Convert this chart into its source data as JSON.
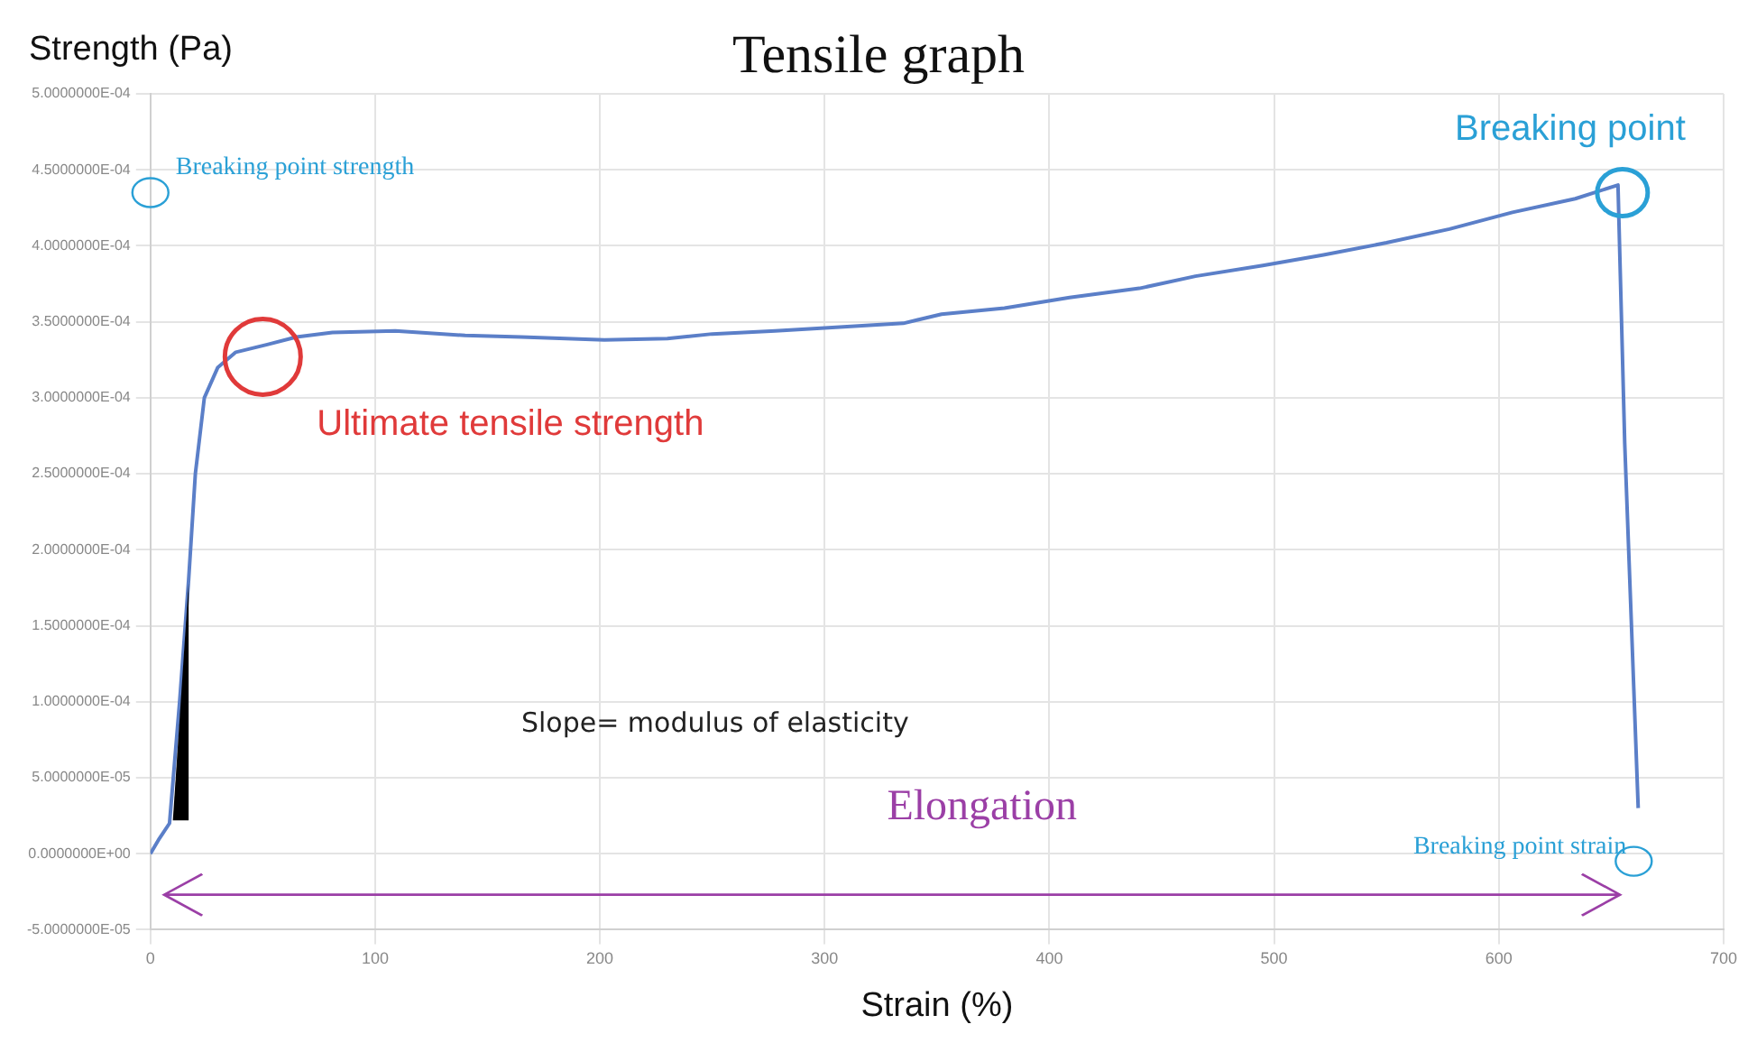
{
  "chart_data": {
    "type": "line",
    "title": "Tensile graph",
    "xlabel": "Strain (%)",
    "ylabel": "Strength (Pa)",
    "x": [
      0,
      4,
      8.5,
      13,
      17,
      20,
      24,
      30,
      38,
      52,
      65,
      81,
      109,
      140,
      165,
      202,
      230,
      250,
      278,
      300,
      335,
      352,
      380,
      409,
      440,
      465,
      495,
      522,
      550,
      578,
      606,
      634,
      653,
      656,
      662
    ],
    "series": [
      {
        "color": "#5b7fc8",
        "values": [
          0,
          1e-05,
          2e-05,
          0.0001,
          0.00018,
          0.00025,
          0.0003,
          0.00032,
          0.00033,
          0.000335,
          0.00034,
          0.000343,
          0.000344,
          0.000341,
          0.00034,
          0.000338,
          0.000339,
          0.000342,
          0.000344,
          0.000346,
          0.000349,
          0.000355,
          0.000359,
          0.000366,
          0.000372,
          0.00038,
          0.000387,
          0.000394,
          0.000402,
          0.000411,
          0.000422,
          0.000431,
          0.00044,
          0.00027,
          3e-05
        ]
      }
    ],
    "xlim": [
      0,
      700
    ],
    "xticks": [
      0,
      100,
      200,
      300,
      400,
      500,
      600,
      700
    ],
    "ylim": [
      -5e-05,
      0.0005
    ],
    "yticks": [
      {
        "value": -5e-05,
        "label": "-5.0000000E-05"
      },
      {
        "value": 0,
        "label": "0.0000000E+00"
      },
      {
        "value": 5e-05,
        "label": "5.0000000E-05"
      },
      {
        "value": 0.0001,
        "label": "1.0000000E-04"
      },
      {
        "value": 0.00015,
        "label": "1.5000000E-04"
      },
      {
        "value": 0.0002,
        "label": "2.0000000E-04"
      },
      {
        "value": 0.00025,
        "label": "2.5000000E-04"
      },
      {
        "value": 0.0003,
        "label": "3.0000000E-04"
      },
      {
        "value": 0.00035,
        "label": "3.5000000E-04"
      },
      {
        "value": 0.0004,
        "label": "4.0000000E-04"
      },
      {
        "value": 0.00045,
        "label": "4.5000000E-04"
      },
      {
        "value": 0.0005,
        "label": "5.0000000E-04"
      }
    ],
    "grid": true,
    "marker": "none",
    "line_style": "solid",
    "annotations": [
      {
        "text": "Ultimate tensile strength",
        "x": 50,
        "y": 0.000327
      },
      {
        "text": "Breaking point",
        "x": 655,
        "y": 0.000435
      },
      {
        "text": "Breaking point strength",
        "x": 0,
        "y": 0.000435
      },
      {
        "text": "Breaking point strain",
        "x": 660,
        "y": -5e-06
      },
      "Slope= modulus of elasticity",
      "Elongation"
    ]
  }
}
